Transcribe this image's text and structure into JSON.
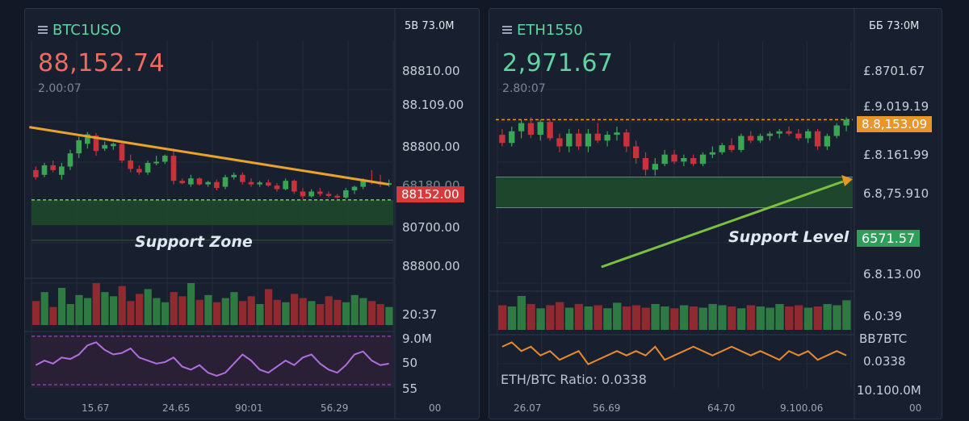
{
  "colors": {
    "up": "#3aa655",
    "down": "#c8323a",
    "trend_orange": "#e8a32c",
    "arrow_green": "#7bc043",
    "rsi": "#b06ee0",
    "ratio_line": "#e8892c",
    "neg_price": "#f06a5e",
    "pos_price": "#5fd4a0",
    "tag_red": "#d63a3a",
    "tag_orange": "#e8962a",
    "tag_green": "#2f9e5a"
  },
  "left": {
    "symbol": "BTC1USO",
    "symbol_icon": "list-icon",
    "price": "88,152.74",
    "sub": "2.00:07",
    "header_right": "5B  73.0M",
    "axis_labels": [
      "88810.00",
      "88.109.00",
      "88800.00",
      "68180.00",
      "80700.00",
      "88800.00"
    ],
    "current_tag": "88152.00",
    "zone_label": "Support Zone",
    "volume_label": "20:37",
    "indicator_labels": [
      "9.0M",
      "50",
      "55"
    ],
    "bottom_labels": [
      "15.67",
      "24.65",
      "90:01",
      "56.29"
    ],
    "corner_label": "00"
  },
  "right": {
    "symbol": "ETH1550",
    "symbol_icon": "list-icon",
    "price": "2,971.67",
    "sub": "2.80:07",
    "header_right": "ББ  73:0M",
    "axis_labels": [
      "£.8701.67",
      "£.9.019.19",
      "£.8.161.99",
      "6.8,75.910",
      "6.8.13.00",
      "6.0:39"
    ],
    "resistance_tag": "8.8,153.09",
    "support_tag": "6571.57",
    "zone_label": "Support Level",
    "ratio_text": "ETH/BTC Ratio: 0.0338",
    "indicator_labels": [
      "BB7BTC",
      "0.0338",
      "10.100.0M"
    ],
    "bottom_labels": [
      "26.07",
      "56.69",
      "64.70",
      "9.100.06"
    ],
    "corner_label": "00"
  },
  "chart_data": [
    {
      "type": "candlestick",
      "title": "BTC1USO",
      "ylim": [
        88000,
        88480
      ],
      "candles": [
        {
          "o": 88210,
          "h": 88225,
          "l": 88170,
          "c": 88180
        },
        {
          "o": 88190,
          "h": 88240,
          "l": 88180,
          "c": 88230
        },
        {
          "o": 88230,
          "h": 88250,
          "l": 88200,
          "c": 88210
        },
        {
          "o": 88190,
          "h": 88240,
          "l": 88170,
          "c": 88225
        },
        {
          "o": 88225,
          "h": 88295,
          "l": 88210,
          "c": 88280
        },
        {
          "o": 88280,
          "h": 88350,
          "l": 88260,
          "c": 88335
        },
        {
          "o": 88320,
          "h": 88370,
          "l": 88300,
          "c": 88360
        },
        {
          "o": 88355,
          "h": 88365,
          "l": 88270,
          "c": 88290
        },
        {
          "o": 88300,
          "h": 88330,
          "l": 88290,
          "c": 88315
        },
        {
          "o": 88310,
          "h": 88325,
          "l": 88295,
          "c": 88320
        },
        {
          "o": 88320,
          "h": 88330,
          "l": 88240,
          "c": 88250
        },
        {
          "o": 88250,
          "h": 88275,
          "l": 88200,
          "c": 88215
        },
        {
          "o": 88215,
          "h": 88230,
          "l": 88190,
          "c": 88200
        },
        {
          "o": 88200,
          "h": 88250,
          "l": 88190,
          "c": 88240
        },
        {
          "o": 88240,
          "h": 88270,
          "l": 88230,
          "c": 88245
        },
        {
          "o": 88245,
          "h": 88275,
          "l": 88235,
          "c": 88270
        },
        {
          "o": 88270,
          "h": 88300,
          "l": 88150,
          "c": 88165
        },
        {
          "o": 88165,
          "h": 88175,
          "l": 88150,
          "c": 88155
        },
        {
          "o": 88150,
          "h": 88190,
          "l": 88140,
          "c": 88175
        },
        {
          "o": 88175,
          "h": 88180,
          "l": 88145,
          "c": 88150
        },
        {
          "o": 88150,
          "h": 88165,
          "l": 88140,
          "c": 88160
        },
        {
          "o": 88160,
          "h": 88170,
          "l": 88125,
          "c": 88135
        },
        {
          "o": 88140,
          "h": 88190,
          "l": 88130,
          "c": 88180
        },
        {
          "o": 88180,
          "h": 88200,
          "l": 88170,
          "c": 88190
        },
        {
          "o": 88190,
          "h": 88200,
          "l": 88150,
          "c": 88160
        },
        {
          "o": 88160,
          "h": 88175,
          "l": 88140,
          "c": 88150
        },
        {
          "o": 88150,
          "h": 88165,
          "l": 88140,
          "c": 88158
        },
        {
          "o": 88158,
          "h": 88170,
          "l": 88140,
          "c": 88145
        },
        {
          "o": 88145,
          "h": 88155,
          "l": 88120,
          "c": 88130
        },
        {
          "o": 88130,
          "h": 88175,
          "l": 88125,
          "c": 88165
        },
        {
          "o": 88165,
          "h": 88170,
          "l": 88110,
          "c": 88120
        },
        {
          "o": 88120,
          "h": 88135,
          "l": 88090,
          "c": 88100
        },
        {
          "o": 88100,
          "h": 88130,
          "l": 88095,
          "c": 88120
        },
        {
          "o": 88120,
          "h": 88135,
          "l": 88100,
          "c": 88110
        },
        {
          "o": 88110,
          "h": 88120,
          "l": 88095,
          "c": 88102
        },
        {
          "o": 88102,
          "h": 88110,
          "l": 88090,
          "c": 88095
        },
        {
          "o": 88095,
          "h": 88135,
          "l": 88090,
          "c": 88125
        },
        {
          "o": 88125,
          "h": 88145,
          "l": 88110,
          "c": 88140
        },
        {
          "o": 88140,
          "h": 88175,
          "l": 88130,
          "c": 88165
        },
        {
          "o": 88165,
          "h": 88210,
          "l": 88150,
          "c": 88160
        },
        {
          "o": 88160,
          "h": 88190,
          "l": 88140,
          "c": 88150
        },
        {
          "o": 88150,
          "h": 88170,
          "l": 88140,
          "c": 88155
        }
      ],
      "volume": [
        40,
        55,
        30,
        62,
        35,
        50,
        45,
        70,
        55,
        48,
        65,
        40,
        52,
        60,
        45,
        38,
        55,
        48,
        70,
        42,
        50,
        38,
        45,
        55,
        40,
        48,
        35,
        60,
        42,
        38,
        52,
        45,
        40,
        35,
        48,
        42,
        38,
        50,
        45,
        40,
        35,
        30
      ],
      "rsi": [
        55,
        58,
        56,
        60,
        59,
        62,
        68,
        70,
        65,
        62,
        63,
        66,
        60,
        58,
        56,
        57,
        60,
        54,
        52,
        55,
        50,
        48,
        50,
        56,
        62,
        58,
        52,
        50,
        54,
        58,
        55,
        60,
        62,
        56,
        52,
        50,
        55,
        62,
        64,
        58,
        55,
        56
      ],
      "trendline": {
        "start": [
          0,
          88390
        ],
        "end": [
          41,
          88150
        ]
      },
      "support_zone": [
        88085,
        88060
      ]
    },
    {
      "type": "candlestick",
      "title": "ETH1550",
      "ylim": [
        2920,
        3010
      ],
      "candles": [
        {
          "o": 2985,
          "h": 2990,
          "l": 2975,
          "c": 2978
        },
        {
          "o": 2978,
          "h": 2992,
          "l": 2975,
          "c": 2988
        },
        {
          "o": 2988,
          "h": 2998,
          "l": 2982,
          "c": 2995
        },
        {
          "o": 2995,
          "h": 3000,
          "l": 2982,
          "c": 2985
        },
        {
          "o": 2985,
          "h": 2998,
          "l": 2980,
          "c": 2996
        },
        {
          "o": 2996,
          "h": 2998,
          "l": 2980,
          "c": 2982
        },
        {
          "o": 2982,
          "h": 2986,
          "l": 2970,
          "c": 2975
        },
        {
          "o": 2975,
          "h": 2990,
          "l": 2970,
          "c": 2986
        },
        {
          "o": 2986,
          "h": 2990,
          "l": 2972,
          "c": 2975
        },
        {
          "o": 2975,
          "h": 2990,
          "l": 2970,
          "c": 2986
        },
        {
          "o": 2986,
          "h": 2995,
          "l": 2978,
          "c": 2980
        },
        {
          "o": 2980,
          "h": 2988,
          "l": 2975,
          "c": 2985
        },
        {
          "o": 2985,
          "h": 2992,
          "l": 2980,
          "c": 2987
        },
        {
          "o": 2987,
          "h": 2990,
          "l": 2970,
          "c": 2975
        },
        {
          "o": 2975,
          "h": 2980,
          "l": 2960,
          "c": 2965
        },
        {
          "o": 2965,
          "h": 2970,
          "l": 2950,
          "c": 2955
        },
        {
          "o": 2955,
          "h": 2965,
          "l": 2950,
          "c": 2960
        },
        {
          "o": 2960,
          "h": 2972,
          "l": 2958,
          "c": 2968
        },
        {
          "o": 2968,
          "h": 2972,
          "l": 2960,
          "c": 2962
        },
        {
          "o": 2962,
          "h": 2968,
          "l": 2958,
          "c": 2965
        },
        {
          "o": 2965,
          "h": 2968,
          "l": 2958,
          "c": 2960
        },
        {
          "o": 2960,
          "h": 2970,
          "l": 2958,
          "c": 2968
        },
        {
          "o": 2968,
          "h": 2975,
          "l": 2965,
          "c": 2970
        },
        {
          "o": 2970,
          "h": 2978,
          "l": 2968,
          "c": 2976
        },
        {
          "o": 2976,
          "h": 2982,
          "l": 2970,
          "c": 2972
        },
        {
          "o": 2972,
          "h": 2986,
          "l": 2970,
          "c": 2984
        },
        {
          "o": 2984,
          "h": 2988,
          "l": 2978,
          "c": 2980
        },
        {
          "o": 2980,
          "h": 2986,
          "l": 2978,
          "c": 2984
        },
        {
          "o": 2984,
          "h": 2988,
          "l": 2980,
          "c": 2986
        },
        {
          "o": 2986,
          "h": 2990,
          "l": 2982,
          "c": 2988
        },
        {
          "o": 2988,
          "h": 2992,
          "l": 2984,
          "c": 2986
        },
        {
          "o": 2986,
          "h": 2990,
          "l": 2980,
          "c": 2982
        },
        {
          "o": 2982,
          "h": 2990,
          "l": 2978,
          "c": 2988
        },
        {
          "o": 2988,
          "h": 2990,
          "l": 2972,
          "c": 2975
        },
        {
          "o": 2975,
          "h": 2986,
          "l": 2972,
          "c": 2984
        },
        {
          "o": 2984,
          "h": 2995,
          "l": 2982,
          "c": 2993
        },
        {
          "o": 2993,
          "h": 3000,
          "l": 2988,
          "c": 2998
        }
      ],
      "volume": [
        40,
        38,
        55,
        42,
        35,
        40,
        45,
        36,
        42,
        38,
        40,
        35,
        44,
        38,
        40,
        36,
        42,
        38,
        35,
        40,
        38,
        36,
        42,
        40,
        38,
        35,
        40,
        38,
        36,
        42,
        38,
        40,
        36,
        38,
        42,
        40,
        48
      ],
      "ratio": [
        0.0339,
        0.034,
        0.0338,
        0.0339,
        0.0337,
        0.0338,
        0.0336,
        0.0337,
        0.0338,
        0.0335,
        0.0336,
        0.0337,
        0.0338,
        0.0337,
        0.0338,
        0.0337,
        0.0339,
        0.0336,
        0.0337,
        0.0338,
        0.0339,
        0.0338,
        0.0337,
        0.0338,
        0.0339,
        0.0338,
        0.0337,
        0.0338,
        0.0337,
        0.0336,
        0.0338,
        0.0337,
        0.0338,
        0.0336,
        0.0337,
        0.0338,
        0.0337
      ],
      "resistance": 2998,
      "support_zone": [
        2964,
        2958
      ],
      "arrow": {
        "from": [
          7,
          2948
        ],
        "to": [
          36,
          2986
        ]
      }
    }
  ]
}
